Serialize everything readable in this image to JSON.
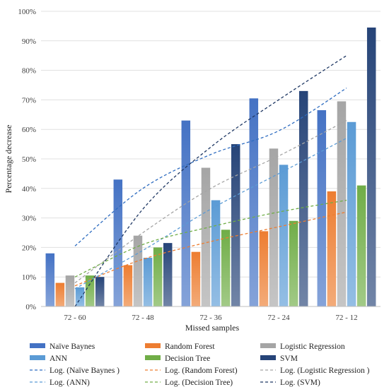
{
  "chart_data": {
    "type": "bar",
    "xlabel": "Missed samples",
    "ylabel": "Percentage decrease",
    "categories": [
      "72 - 60",
      "72 - 48",
      "72 - 36",
      "72 - 24",
      "72 - 12"
    ],
    "ylim": [
      0,
      100
    ],
    "yticks": [
      "0%",
      "10%",
      "20%",
      "30%",
      "40%",
      "50%",
      "60%",
      "70%",
      "80%",
      "90%",
      "100%"
    ],
    "grid": true,
    "legend_position": "bottom",
    "series": [
      {
        "name": "Naïve Baynes",
        "color": "#4472c4",
        "values": [
          18,
          43,
          63,
          70.5,
          66.5
        ]
      },
      {
        "name": "Random Forest",
        "color": "#ed7d31",
        "values": [
          8,
          14,
          18.5,
          25.5,
          39
        ]
      },
      {
        "name": "Logistic Regression",
        "color": "#a5a5a5",
        "values": [
          10.5,
          24,
          47,
          53.5,
          69.5
        ]
      },
      {
        "name": "ANN",
        "color": "#5b9bd5",
        "values": [
          6.5,
          16.5,
          36,
          48,
          62.5
        ]
      },
      {
        "name": "Decision Tree",
        "color": "#70ad47",
        "values": [
          10.5,
          20,
          26,
          29,
          41
        ]
      },
      {
        "name": "SVM",
        "color": "#264478",
        "values": [
          10,
          21.5,
          55,
          73,
          94.5
        ]
      }
    ],
    "trendlines": [
      {
        "name": "Log. (Naïve Baynes )",
        "color": "#2e6cc0",
        "values": [
          20.5,
          40,
          51.5,
          59.5,
          74
        ]
      },
      {
        "name": "Log. (Random Forest)",
        "color": "#ed7d31",
        "values": [
          7,
          16,
          22,
          27,
          32
        ]
      },
      {
        "name": "Log. (Logistic Regression )",
        "color": "#a5a5a5",
        "values": [
          8,
          25,
          40,
          51,
          63
        ]
      },
      {
        "name": "Log. (ANN)",
        "color": "#5b9bd5",
        "values": [
          6,
          19,
          33,
          45,
          57
        ]
      },
      {
        "name": "Log. (Decision Tree)",
        "color": "#70ad47",
        "values": [
          10,
          21,
          27,
          32,
          36
        ]
      },
      {
        "name": "Log. (SVM)",
        "color": "#1f3864",
        "values": [
          0,
          33,
          54,
          70,
          85
        ]
      }
    ]
  }
}
